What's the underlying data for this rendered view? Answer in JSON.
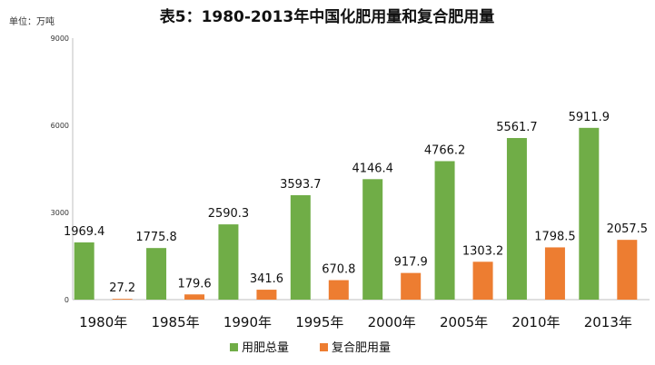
{
  "chart_data": {
    "type": "bar",
    "title": "表5：1980-2013年中国化肥用量和复合肥用量",
    "unit_label": "单位：万吨",
    "categories": [
      "1980年",
      "1985年",
      "1990年",
      "1995年",
      "2000年",
      "2005年",
      "2010年",
      "2013年"
    ],
    "series": [
      {
        "name": "用肥总量",
        "color": "#70ad47",
        "values": [
          1969.4,
          1775.8,
          2590.3,
          3593.7,
          4146.4,
          4766.2,
          5561.7,
          5911.9
        ],
        "labels": [
          "1969.4",
          "1775.8",
          "2590.3",
          "3593.7",
          "4146.4",
          "4766.2",
          "5561.7",
          "5911.9"
        ]
      },
      {
        "name": "复合肥用量",
        "color": "#ed7d31",
        "values": [
          27.2,
          179.6,
          341.6,
          670.8,
          917.9,
          1303.2,
          1798.5,
          2057.5
        ],
        "labels": [
          "27.2",
          "179.6",
          "341.6",
          "670.8",
          "917.9",
          "1303.2",
          "1798.5",
          "2057.5"
        ]
      }
    ],
    "ylim": [
      0,
      9000
    ],
    "yticks": [
      "0",
      "3000",
      "6000",
      "9000"
    ],
    "grid": false,
    "legend_position": "bottom"
  }
}
